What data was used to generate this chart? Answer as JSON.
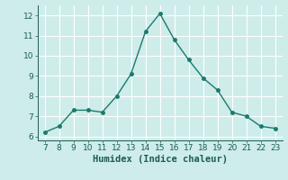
{
  "x": [
    7,
    8,
    9,
    10,
    11,
    12,
    13,
    14,
    15,
    16,
    17,
    18,
    19,
    20,
    21,
    22,
    23
  ],
  "y": [
    6.2,
    6.5,
    7.3,
    7.3,
    7.2,
    8.0,
    9.1,
    11.2,
    12.1,
    10.8,
    9.8,
    8.9,
    8.3,
    7.2,
    7.0,
    6.5,
    6.4
  ],
  "xlabel": "Humidex (Indice chaleur)",
  "ylim": [
    5.8,
    12.5
  ],
  "xlim": [
    6.5,
    23.5
  ],
  "yticks": [
    6,
    7,
    8,
    9,
    10,
    11,
    12
  ],
  "xticks": [
    7,
    8,
    9,
    10,
    11,
    12,
    13,
    14,
    15,
    16,
    17,
    18,
    19,
    20,
    21,
    22,
    23
  ],
  "line_color": "#1a7a6e",
  "marker_color": "#1a7a6e",
  "bg_color": "#ceecea",
  "grid_color": "#ffffff",
  "axis_bg": "#ceecea",
  "xlabel_fontsize": 7.5,
  "tick_fontsize": 6.5
}
